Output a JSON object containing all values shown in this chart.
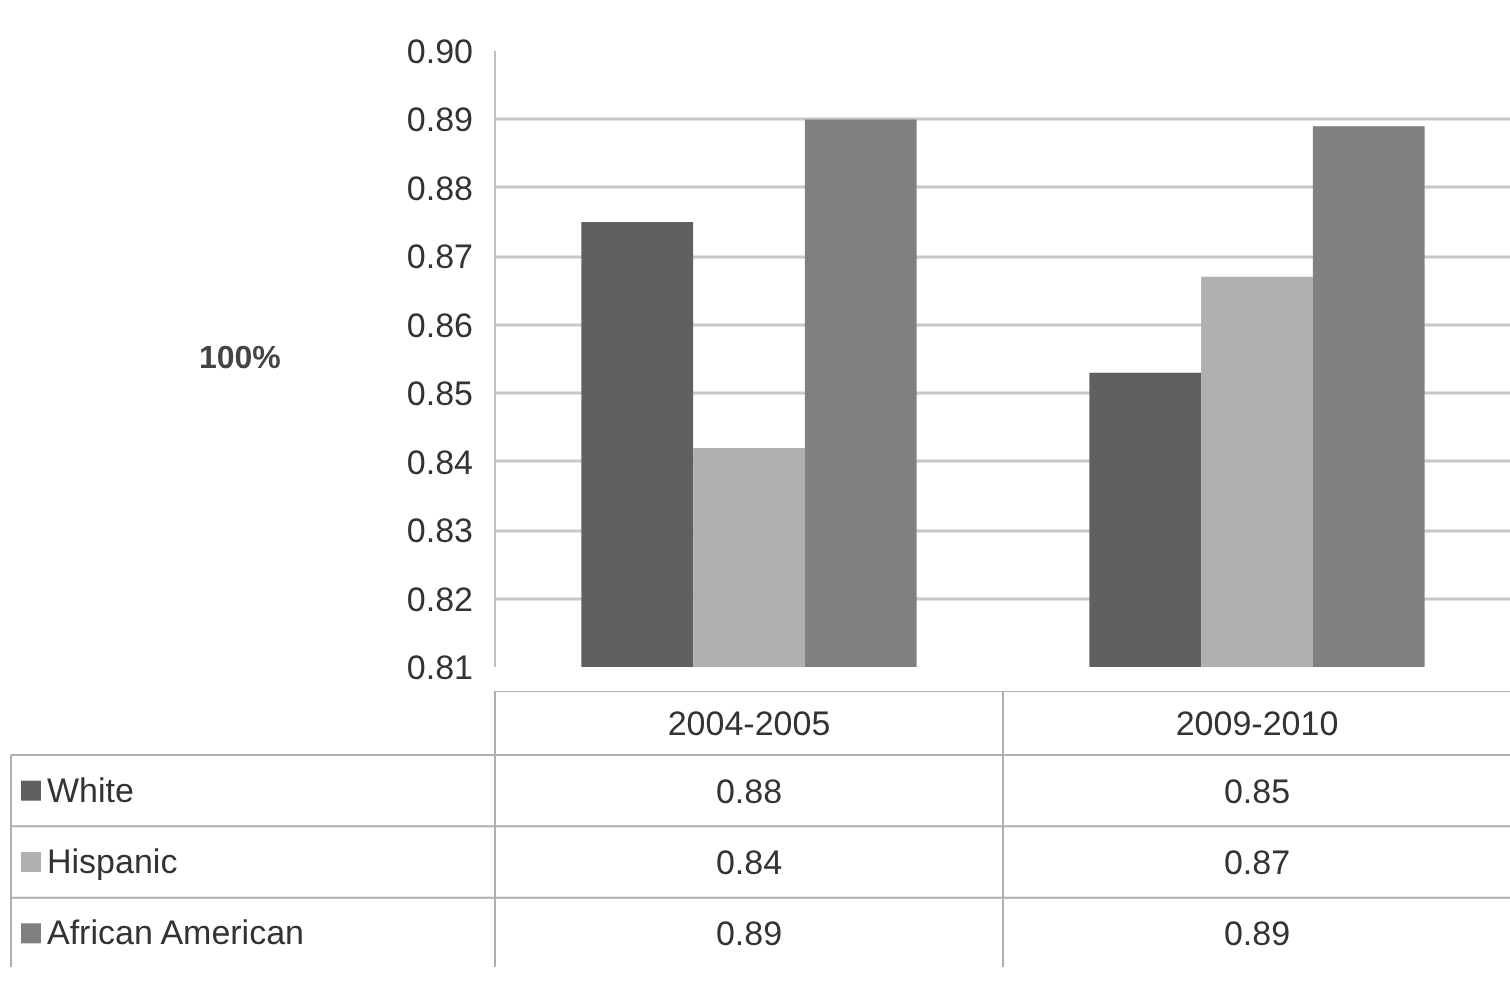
{
  "chart_data": {
    "type": "bar",
    "ylabel": "100%",
    "categories": [
      "2004-2005",
      "2009-2010"
    ],
    "series": [
      {
        "name": "White",
        "color": "#606060",
        "values": [
          0.875,
          0.853
        ],
        "value_labels": [
          "0.88",
          "0.85"
        ]
      },
      {
        "name": "Hispanic",
        "color": "#b0b0b0",
        "values": [
          0.842,
          0.867
        ],
        "value_labels": [
          "0.84",
          "0.87"
        ]
      },
      {
        "name": "African American",
        "color": "#808080",
        "values": [
          0.89,
          0.889
        ],
        "value_labels": [
          "0.89",
          "0.89"
        ]
      }
    ],
    "ylim": [
      0.81,
      0.9
    ],
    "yticks": [
      {
        "value": 0.81,
        "label": "0.81"
      },
      {
        "value": 0.82,
        "label": "0.82"
      },
      {
        "value": 0.83,
        "label": "0.83"
      },
      {
        "value": 0.84,
        "label": "0.84"
      },
      {
        "value": 0.85,
        "label": "0.85"
      },
      {
        "value": 0.86,
        "label": "0.86"
      },
      {
        "value": 0.87,
        "label": "0.87"
      },
      {
        "value": 0.88,
        "label": "0.88"
      },
      {
        "value": 0.89,
        "label": "0.89"
      },
      {
        "value": 0.9,
        "label": "0.90"
      }
    ],
    "grid": "y",
    "legend": "bottom"
  }
}
